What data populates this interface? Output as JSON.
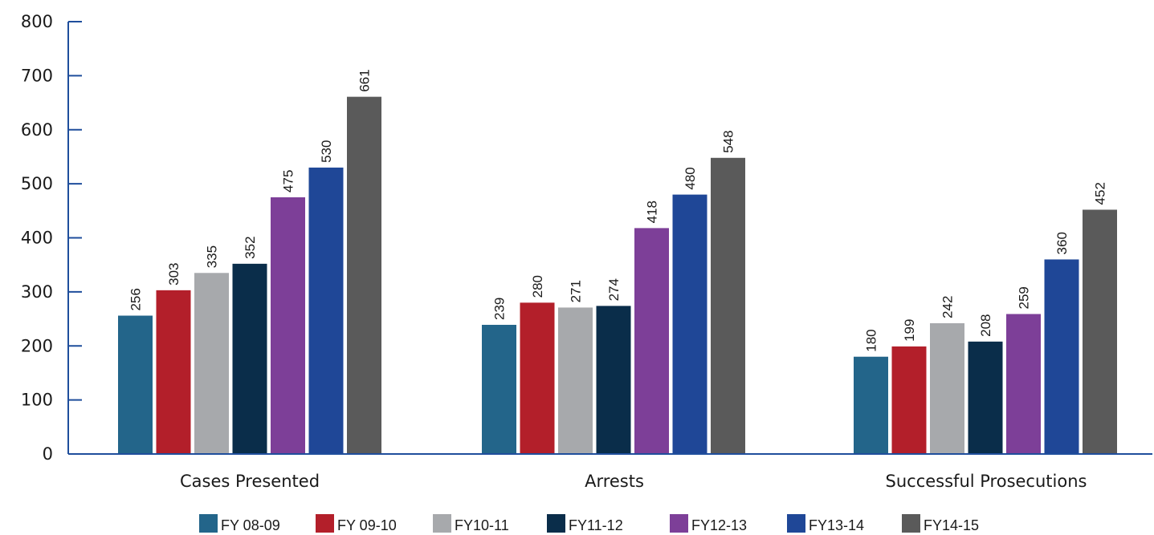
{
  "chart_data": {
    "type": "bar",
    "title": "",
    "xlabel": "",
    "ylabel": "",
    "ylim": [
      0,
      800
    ],
    "yticks": [
      0,
      100,
      200,
      300,
      400,
      500,
      600,
      700,
      800
    ],
    "grid": false,
    "legend_position": "bottom",
    "categories": [
      "Cases Presented",
      "Arrests",
      "Successful Prosecutions"
    ],
    "series": [
      {
        "name": "FY 08-09",
        "color": "#23658a",
        "values": [
          256,
          239,
          180
        ]
      },
      {
        "name": "FY 09-10",
        "color": "#b31f2a",
        "values": [
          303,
          280,
          199
        ]
      },
      {
        "name": "FY10-11",
        "color": "#a7a9ac",
        "values": [
          335,
          271,
          242
        ]
      },
      {
        "name": "FY11-12",
        "color": "#0a2d4a",
        "values": [
          352,
          274,
          208
        ]
      },
      {
        "name": "FY12-13",
        "color": "#7d3f98",
        "values": [
          475,
          418,
          259
        ]
      },
      {
        "name": "FY13-14",
        "color": "#1f4797",
        "values": [
          530,
          480,
          360
        ]
      },
      {
        "name": "FY14-15",
        "color": "#5a5a5a",
        "values": [
          661,
          548,
          452
        ]
      }
    ]
  }
}
